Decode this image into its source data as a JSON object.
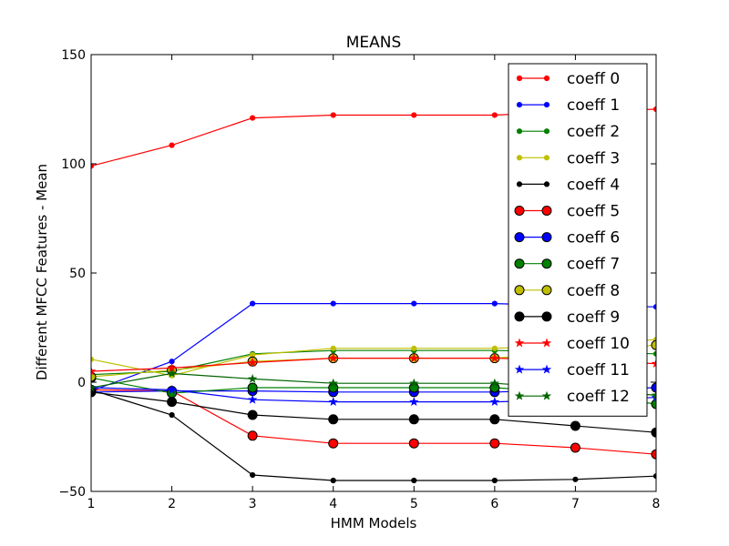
{
  "chart_data": {
    "type": "line",
    "title": "MEANS",
    "xlabel": "HMM Models",
    "ylabel": "Different MFCC Features - Mean",
    "xlim": [
      1,
      8
    ],
    "ylim": [
      -50,
      150
    ],
    "xticks": [
      1,
      2,
      3,
      4,
      5,
      6,
      7,
      8
    ],
    "yticks": [
      -50,
      0,
      50,
      100,
      150
    ],
    "grid": false,
    "legend_position": "top-right",
    "x": [
      1,
      2,
      3,
      4,
      5,
      6,
      7,
      8
    ],
    "series": [
      {
        "name": "coeff 0",
        "color": "#ff0000",
        "marker": "dot",
        "values": [
          99,
          108.5,
          121,
          122.3,
          122.3,
          122.3,
          124,
          125
        ]
      },
      {
        "name": "coeff 1",
        "color": "#0000ff",
        "marker": "dot",
        "values": [
          -4,
          9.5,
          36,
          36,
          36,
          36,
          35,
          34.5
        ]
      },
      {
        "name": "coeff 2",
        "color": "#008000",
        "marker": "dot",
        "values": [
          3.5,
          5,
          13,
          14.5,
          14.5,
          14.5,
          14,
          13
        ]
      },
      {
        "name": "coeff 3",
        "color": "#bfbf00",
        "marker": "dot",
        "values": [
          10.5,
          3,
          12.5,
          15.5,
          15.5,
          15.5,
          17,
          19.5
        ]
      },
      {
        "name": "coeff 4",
        "color": "#000000",
        "marker": "dot",
        "values": [
          -3.5,
          -15,
          -42.5,
          -45,
          -45,
          -45,
          -44.5,
          -43
        ]
      },
      {
        "name": "coeff 5",
        "color": "#ff0000",
        "marker": "circle",
        "values": [
          -3.5,
          -4,
          -24.5,
          -28,
          -28,
          -28,
          -30,
          -33
        ]
      },
      {
        "name": "coeff 6",
        "color": "#0000ff",
        "marker": "circle",
        "values": [
          -4.5,
          -4,
          -4,
          -4.5,
          -4.5,
          -4.5,
          -3.5,
          -2.5
        ]
      },
      {
        "name": "coeff 7",
        "color": "#008000",
        "marker": "circle",
        "values": [
          2,
          -5,
          -2.5,
          -2.5,
          -2.5,
          -2.5,
          -5,
          -10
        ]
      },
      {
        "name": "coeff 8",
        "color": "#bfbf00",
        "marker": "circle",
        "values": [
          2.5,
          5.5,
          9.5,
          11,
          11,
          11,
          14,
          17
        ]
      },
      {
        "name": "coeff 9",
        "color": "#000000",
        "marker": "circle",
        "values": [
          -4.5,
          -9,
          -15,
          -17,
          -17,
          -17,
          -20,
          -23
        ]
      },
      {
        "name": "coeff 10",
        "color": "#ff0000",
        "marker": "star",
        "values": [
          5,
          6.5,
          9,
          11,
          11,
          11,
          10,
          8.5
        ]
      },
      {
        "name": "coeff 11",
        "color": "#0000ff",
        "marker": "star",
        "values": [
          -2.5,
          -3.5,
          -8,
          -9,
          -9,
          -9,
          -8,
          -7
        ]
      },
      {
        "name": "coeff 12",
        "color": "#006400",
        "marker": "star",
        "values": [
          -2.5,
          4,
          1.5,
          -0.5,
          -0.5,
          -0.5,
          -3,
          -6
        ]
      }
    ]
  }
}
